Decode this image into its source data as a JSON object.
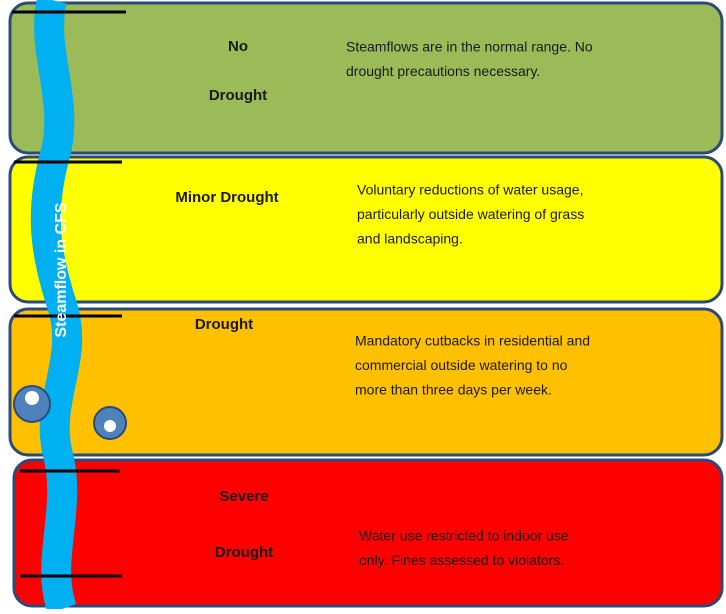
{
  "axis_label": "Steamflow in CFS",
  "levels": [
    {
      "label": [
        "No",
        "Drought"
      ],
      "description": [
        "Steamflows are in the normal range. No",
        "drought precautions necessary."
      ]
    },
    {
      "label": [
        "Minor Drought"
      ],
      "description": [
        "Voluntary reductions of water usage,",
        "particularly outside watering of grass",
        "and landscaping."
      ]
    },
    {
      "label": [
        "Drought"
      ],
      "description": [
        "Mandatory cutbacks in residential and",
        "commercial outside watering to no",
        "more than three days per week."
      ]
    },
    {
      "label": [
        "Severe",
        "Drought"
      ],
      "description": [
        "Water use restricted to indoor use",
        "only.  Fines assessed to violators."
      ]
    }
  ]
}
